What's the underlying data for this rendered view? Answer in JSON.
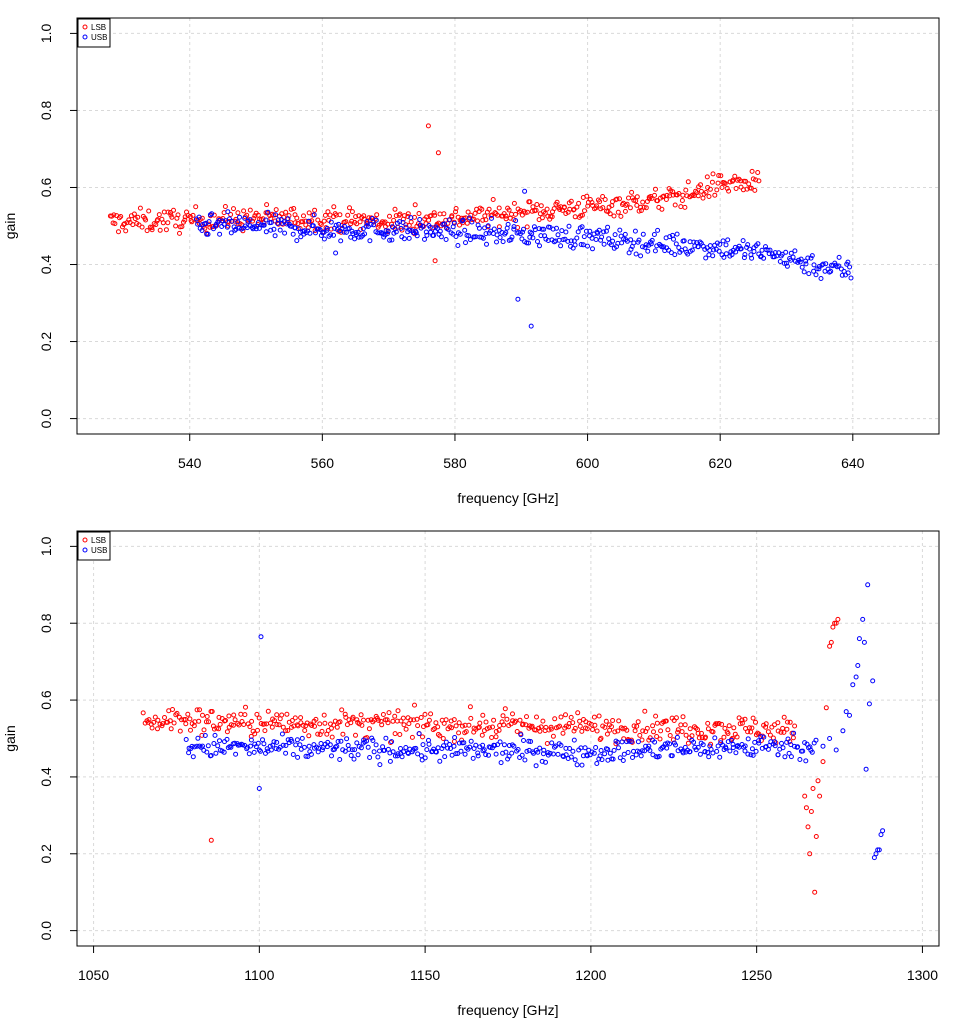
{
  "chart_data": [
    {
      "type": "scatter",
      "title": "",
      "xlabel": "frequency [GHz]",
      "ylabel": "gain",
      "xlim": [
        523,
        653
      ],
      "ylim": [
        -0.04,
        1.04
      ],
      "xticks": [
        540,
        560,
        580,
        600,
        620,
        640
      ],
      "xtick_labels": [
        "540",
        "560",
        "580",
        "600",
        "620",
        "640"
      ],
      "yticks": [
        0,
        0.2,
        0.4,
        0.6,
        0.8,
        1
      ],
      "ytick_labels": [
        "0.0",
        "0.2",
        "0.4",
        "0.6",
        "0.8",
        "1.0"
      ],
      "grid": true,
      "legend": {
        "position": "top-left",
        "entries": [
          "LSB",
          "USB"
        ]
      },
      "series": [
        {
          "name": "LSB",
          "color": "#ff0000",
          "marker": "open-circle",
          "note": "continuous sweep, ~5 points per GHz",
          "trend": [
            [
              528,
              0.51
            ],
            [
              540,
              0.515
            ],
            [
              550,
              0.52
            ],
            [
              560,
              0.52
            ],
            [
              570,
              0.51
            ],
            [
              580,
              0.52
            ],
            [
              590,
              0.535
            ],
            [
              600,
              0.55
            ],
            [
              610,
              0.565
            ],
            [
              615,
              0.58
            ],
            [
              620,
              0.61
            ],
            [
              625,
              0.61
            ],
            [
              626,
              0.6
            ]
          ],
          "range": [
            528,
            626
          ],
          "spread": 0.03,
          "outliers": [
            [
              576,
              0.76
            ],
            [
              577.5,
              0.69
            ],
            [
              577,
              0.41
            ],
            [
              574,
              0.555
            ],
            [
              581,
              0.52
            ]
          ]
        },
        {
          "name": "USB",
          "color": "#0000ff",
          "marker": "open-circle",
          "note": "continuous sweep, ~5 points per GHz",
          "trend": [
            [
              541,
              0.5
            ],
            [
              550,
              0.5
            ],
            [
              560,
              0.49
            ],
            [
              570,
              0.49
            ],
            [
              580,
              0.485
            ],
            [
              590,
              0.48
            ],
            [
              600,
              0.47
            ],
            [
              610,
              0.455
            ],
            [
              620,
              0.445
            ],
            [
              630,
              0.42
            ],
            [
              635,
              0.395
            ],
            [
              640,
              0.385
            ]
          ],
          "range": [
            541,
            640
          ],
          "spread": 0.03,
          "outliers": [
            [
              589.5,
              0.31
            ],
            [
              591.5,
              0.24
            ],
            [
              590.5,
              0.59
            ],
            [
              562,
              0.43
            ]
          ]
        }
      ]
    },
    {
      "type": "scatter",
      "title": "",
      "xlabel": "frequency [GHz]",
      "ylabel": "gain",
      "xlim": [
        1045,
        1305
      ],
      "ylim": [
        -0.04,
        1.04
      ],
      "xticks": [
        1050,
        1100,
        1150,
        1200,
        1250,
        1300
      ],
      "xtick_labels": [
        "1050",
        "1100",
        "1150",
        "1200",
        "1250",
        "1300"
      ],
      "yticks": [
        0,
        0.2,
        0.4,
        0.6,
        0.8,
        1
      ],
      "ytick_labels": [
        "0.0",
        "0.2",
        "0.4",
        "0.6",
        "0.8",
        "1.0"
      ],
      "grid": true,
      "legend": {
        "position": "top-left",
        "entries": [
          "LSB",
          "USB"
        ]
      },
      "series": [
        {
          "name": "LSB",
          "color": "#ff0000",
          "marker": "open-circle",
          "note": "continuous sweep, ~2.2 points per GHz",
          "trend": [
            [
              1065,
              0.55
            ],
            [
              1100,
              0.54
            ],
            [
              1150,
              0.535
            ],
            [
              1200,
              0.53
            ],
            [
              1250,
              0.525
            ],
            [
              1262,
              0.52
            ]
          ],
          "range": [
            1065,
            1262
          ],
          "spread": 0.035,
          "outliers": [
            [
              1085.5,
              0.235
            ],
            [
              1264.5,
              0.35
            ],
            [
              1265,
              0.32
            ],
            [
              1265.5,
              0.27
            ],
            [
              1266,
              0.2
            ],
            [
              1266.5,
              0.31
            ],
            [
              1267,
              0.37
            ],
            [
              1267.5,
              0.1
            ],
            [
              1268,
              0.245
            ],
            [
              1268.5,
              0.39
            ],
            [
              1269,
              0.35
            ],
            [
              1270,
              0.44
            ],
            [
              1271,
              0.58
            ],
            [
              1272,
              0.74
            ],
            [
              1272.5,
              0.75
            ],
            [
              1273,
              0.79
            ],
            [
              1273.5,
              0.8
            ],
            [
              1274,
              0.8
            ],
            [
              1274.5,
              0.81
            ]
          ]
        },
        {
          "name": "USB",
          "color": "#0000ff",
          "marker": "open-circle",
          "note": "continuous sweep, ~2.2 points per GHz",
          "trend": [
            [
              1078,
              0.48
            ],
            [
              1100,
              0.475
            ],
            [
              1150,
              0.47
            ],
            [
              1200,
              0.465
            ],
            [
              1250,
              0.48
            ],
            [
              1268,
              0.48
            ]
          ],
          "range": [
            1078,
            1268
          ],
          "spread": 0.03,
          "outliers": [
            [
              1100,
              0.37
            ],
            [
              1100.5,
              0.765
            ],
            [
              1270,
              0.48
            ],
            [
              1272,
              0.5
            ],
            [
              1274,
              0.47
            ],
            [
              1276,
              0.52
            ],
            [
              1277,
              0.57
            ],
            [
              1278,
              0.56
            ],
            [
              1279,
              0.64
            ],
            [
              1280,
              0.66
            ],
            [
              1280.5,
              0.69
            ],
            [
              1281,
              0.76
            ],
            [
              1282,
              0.81
            ],
            [
              1282.5,
              0.75
            ],
            [
              1283,
              0.42
            ],
            [
              1283.5,
              0.9
            ],
            [
              1284,
              0.59
            ],
            [
              1285,
              0.65
            ],
            [
              1285.5,
              0.19
            ],
            [
              1286,
              0.2
            ],
            [
              1286.5,
              0.21
            ],
            [
              1287,
              0.21
            ],
            [
              1287.5,
              0.25
            ],
            [
              1288,
              0.26
            ]
          ]
        }
      ]
    }
  ]
}
